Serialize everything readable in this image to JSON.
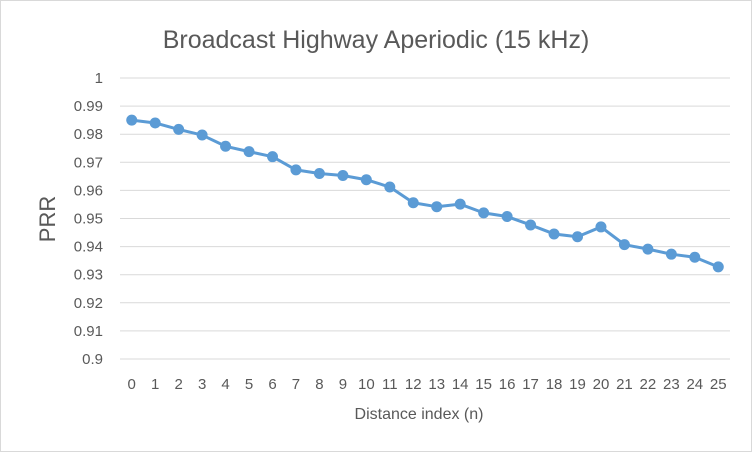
{
  "chart_data": {
    "type": "line",
    "title": "Broadcast Highway Aperiodic (15 kHz)",
    "xlabel": "Distance index (n)",
    "ylabel": "PRR",
    "ylim": [
      0.9,
      1.0
    ],
    "y_ticks": [
      "0.9",
      "0.91",
      "0.92",
      "0.93",
      "0.94",
      "0.95",
      "0.96",
      "0.97",
      "0.98",
      "0.99",
      "1"
    ],
    "categories": [
      "0",
      "1",
      "2",
      "3",
      "4",
      "5",
      "6",
      "7",
      "8",
      "9",
      "10",
      "11",
      "12",
      "13",
      "14",
      "15",
      "16",
      "17",
      "18",
      "19",
      "20",
      "21",
      "22",
      "23",
      "24",
      "25"
    ],
    "series": [
      {
        "color": "#5b9bd5",
        "values": [
          0.985,
          0.984,
          0.9817,
          0.9797,
          0.9757,
          0.9738,
          0.972,
          0.9673,
          0.966,
          0.9653,
          0.9638,
          0.9612,
          0.9556,
          0.9542,
          0.9551,
          0.952,
          0.9507,
          0.9477,
          0.9445,
          0.9435,
          0.947,
          0.9407,
          0.9391,
          0.9373,
          0.9362,
          0.9328
        ]
      }
    ],
    "grid": true,
    "legend": "none"
  }
}
